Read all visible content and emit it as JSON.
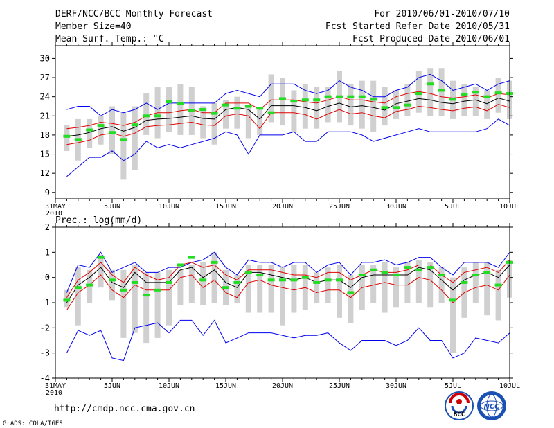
{
  "header": {
    "title": "DERF/NCC/BCC Monthly Forecast",
    "member_size": "Member Size=40",
    "variable": "Mean Surf. Temp.: °C",
    "forecast_for": "For 2010/06/01-2010/07/10",
    "started_refer": "Fcst Started Refer Date 2010/05/31",
    "produced": "Fcst Produced Date 2010/06/01"
  },
  "footer": {
    "url": "http://cmdp.ncc.cma.gov.cn",
    "grads": "GrADS: COLA/IGES",
    "logo_left_text": "BCC",
    "logo_right_text": "NCC"
  },
  "colors": {
    "spread": "#d0d0d0",
    "member_max_min": "#0000ee",
    "band": "#e00000",
    "mean": "#000000",
    "marker": "#22dd22"
  },
  "chart_data": [
    {
      "id": "temperature",
      "type": "line",
      "title": "Mean Surf. Temp.: °C",
      "ylim": [
        8,
        32
      ],
      "yticks": [
        9,
        12,
        15,
        18,
        21,
        24,
        27,
        30
      ],
      "x_tick_labels": [
        "31MAY",
        "5JUN",
        "10JUN",
        "15JUN",
        "20JUN",
        "25JUN",
        "30JUN",
        "5JUL",
        "10JUL"
      ],
      "x_tick_days": [
        0,
        5,
        10,
        15,
        20,
        25,
        30,
        35,
        40
      ],
      "x_year_label": "2010",
      "days": [
        1,
        2,
        3,
        4,
        5,
        6,
        7,
        8,
        9,
        10,
        11,
        12,
        13,
        14,
        15,
        16,
        17,
        18,
        19,
        20,
        21,
        22,
        23,
        24,
        25,
        26,
        27,
        28,
        29,
        30,
        31,
        32,
        33,
        34,
        35,
        36,
        37,
        38,
        39,
        40
      ],
      "max": [
        22.0,
        22.5,
        22.5,
        21.0,
        22.0,
        21.5,
        22.0,
        23.0,
        22.0,
        23.0,
        23.0,
        23.0,
        23.0,
        23.0,
        24.5,
        25.0,
        24.5,
        24.0,
        26.0,
        26.0,
        26.0,
        25.0,
        24.5,
        25.0,
        26.5,
        25.5,
        25.0,
        24.0,
        24.0,
        25.0,
        25.5,
        27.0,
        27.5,
        26.5,
        25.0,
        25.5,
        26.0,
        25.0,
        26.0,
        26.5
      ],
      "upper": [
        19.0,
        19.2,
        19.5,
        20.0,
        19.8,
        19.5,
        20.0,
        21.0,
        21.5,
        21.5,
        21.8,
        22.0,
        21.5,
        21.5,
        23.0,
        23.0,
        23.0,
        22.0,
        23.5,
        23.5,
        23.5,
        23.2,
        23.0,
        23.5,
        24.0,
        23.5,
        23.5,
        23.2,
        23.0,
        24.0,
        24.5,
        24.8,
        24.5,
        24.0,
        23.8,
        24.0,
        24.3,
        23.8,
        24.5,
        24.3
      ],
      "mean": [
        17.8,
        18.0,
        18.4,
        19.0,
        19.3,
        18.6,
        19.2,
        20.3,
        20.5,
        20.6,
        20.8,
        21.0,
        20.6,
        20.5,
        22.0,
        22.3,
        22.0,
        20.5,
        22.6,
        22.6,
        22.6,
        22.3,
        21.8,
        22.5,
        23.0,
        22.4,
        22.6,
        22.3,
        21.9,
        22.9,
        23.3,
        23.7,
        23.5,
        23.1,
        22.9,
        23.3,
        23.5,
        22.9,
        23.8,
        23.3
      ],
      "lower": [
        16.5,
        16.8,
        17.2,
        18.0,
        18.3,
        17.8,
        18.3,
        19.3,
        19.5,
        19.6,
        19.8,
        20.0,
        19.6,
        19.5,
        21.0,
        21.3,
        21.0,
        19.0,
        21.5,
        21.5,
        21.5,
        21.2,
        20.5,
        21.3,
        22.0,
        21.3,
        21.5,
        21.0,
        20.7,
        21.7,
        22.0,
        22.5,
        22.3,
        22.0,
        21.8,
        22.2,
        22.4,
        21.8,
        22.8,
        22.3
      ],
      "min": [
        11.5,
        13.0,
        14.5,
        14.5,
        15.5,
        14.0,
        15.0,
        17.0,
        16.0,
        16.5,
        16.0,
        16.5,
        17.0,
        17.5,
        18.5,
        18.0,
        15.0,
        18.0,
        18.0,
        18.0,
        18.5,
        17.0,
        17.0,
        18.5,
        18.5,
        18.5,
        18.0,
        17.0,
        17.5,
        18.0,
        18.5,
        19.0,
        18.5,
        18.5,
        18.5,
        18.5,
        18.5,
        19.0,
        20.5,
        19.5
      ],
      "spread_top": [
        19.5,
        20.5,
        20.5,
        21.0,
        22.5,
        21.5,
        22.5,
        24.5,
        25.5,
        25.5,
        26.0,
        25.5,
        22.5,
        23.0,
        23.5,
        24.0,
        22.5,
        22.0,
        27.5,
        27.0,
        25.0,
        26.0,
        25.5,
        25.5,
        28.0,
        26.0,
        26.5,
        26.5,
        25.5,
        25.0,
        26.0,
        28.0,
        28.5,
        28.5,
        26.5,
        26.0,
        25.5,
        25.0,
        27.0,
        26.5
      ],
      "spread_bottom": [
        15.5,
        14.0,
        16.0,
        16.5,
        15.0,
        11.0,
        12.5,
        18.0,
        17.5,
        18.5,
        18.0,
        18.0,
        17.5,
        16.5,
        19.0,
        19.0,
        17.5,
        18.0,
        20.0,
        19.5,
        18.5,
        19.0,
        19.0,
        20.0,
        20.0,
        19.5,
        19.0,
        18.5,
        19.5,
        20.5,
        21.0,
        21.5,
        21.0,
        21.0,
        20.5,
        21.0,
        21.0,
        20.5,
        21.5,
        20.5
      ],
      "markers": [
        17.8,
        17.3,
        18.8,
        19.5,
        18.4,
        17.3,
        19.6,
        21.0,
        21.0,
        23.2,
        22.9,
        21.8,
        22.0,
        21.4,
        22.7,
        22.2,
        22.5,
        22.2,
        21.5,
        23.7,
        23.3,
        23.5,
        23.5,
        24.0,
        24.0,
        24.0,
        24.0,
        23.6,
        22.3,
        22.3,
        22.7,
        24.5,
        26.0,
        25.0,
        23.6,
        24.4,
        24.7,
        24.0,
        24.6,
        24.5
      ]
    },
    {
      "id": "precipitation",
      "type": "line",
      "title": "Prec.: log(mm/d)",
      "ylim": [
        -4,
        2
      ],
      "yticks": [
        -4,
        -3,
        -2,
        -1,
        0,
        1,
        2
      ],
      "x_tick_labels": [
        "31MAY",
        "5JUN",
        "10JUN",
        "15JUN",
        "20JUN",
        "25JUN",
        "30JUN",
        "5JUL",
        "10JUL"
      ],
      "x_tick_days": [
        0,
        5,
        10,
        15,
        20,
        25,
        30,
        35,
        40
      ],
      "x_year_label": "2010",
      "days": [
        1,
        2,
        3,
        4,
        5,
        6,
        7,
        8,
        9,
        10,
        11,
        12,
        13,
        14,
        15,
        16,
        17,
        18,
        19,
        20,
        21,
        22,
        23,
        24,
        25,
        26,
        27,
        28,
        29,
        30,
        31,
        32,
        33,
        34,
        35,
        36,
        37,
        38,
        39,
        40
      ],
      "max": [
        -0.6,
        0.5,
        0.4,
        1.0,
        0.2,
        0.4,
        0.6,
        0.2,
        0.2,
        0.4,
        0.4,
        0.6,
        0.7,
        1.0,
        0.4,
        0.1,
        0.7,
        0.6,
        0.6,
        0.4,
        0.6,
        0.6,
        0.2,
        0.5,
        0.6,
        0.1,
        0.6,
        0.6,
        0.7,
        0.5,
        0.6,
        0.8,
        0.8,
        0.4,
        0.1,
        0.6,
        0.6,
        0.6,
        0.4,
        1.0
      ],
      "upper": [
        -0.8,
        -0.1,
        0.2,
        0.6,
        0.1,
        -0.2,
        0.4,
        0.1,
        -0.1,
        0.0,
        0.5,
        0.6,
        0.4,
        0.5,
        0.1,
        -0.1,
        0.3,
        0.3,
        0.3,
        0.2,
        0.1,
        0.1,
        0.0,
        0.2,
        0.2,
        -0.1,
        0.1,
        0.3,
        0.2,
        0.2,
        0.3,
        0.5,
        0.5,
        0.1,
        -0.2,
        0.2,
        0.3,
        0.4,
        0.2,
        0.7
      ],
      "mean": [
        -1.0,
        -0.3,
        0.0,
        0.4,
        -0.2,
        -0.4,
        0.2,
        -0.2,
        -0.2,
        -0.2,
        0.3,
        0.4,
        0.0,
        0.3,
        -0.2,
        -0.4,
        0.2,
        0.2,
        0.1,
        0.0,
        -0.1,
        0.0,
        -0.2,
        -0.1,
        -0.1,
        -0.4,
        0.0,
        0.1,
        0.1,
        0.1,
        0.1,
        0.4,
        0.3,
        -0.1,
        -0.5,
        -0.1,
        0.1,
        0.2,
        0.0,
        0.5
      ],
      "lower": [
        -1.3,
        -0.6,
        -0.3,
        0.1,
        -0.5,
        -0.8,
        -0.3,
        -0.5,
        -0.5,
        -0.5,
        0.0,
        0.1,
        -0.4,
        -0.1,
        -0.6,
        -0.8,
        -0.2,
        -0.1,
        -0.3,
        -0.4,
        -0.5,
        -0.4,
        -0.6,
        -0.5,
        -0.5,
        -0.8,
        -0.4,
        -0.3,
        -0.2,
        -0.3,
        -0.3,
        0.0,
        -0.1,
        -0.5,
        -1.0,
        -0.6,
        -0.4,
        -0.3,
        -0.5,
        0.1
      ],
      "min": [
        -3.0,
        -2.1,
        -2.3,
        -2.1,
        -3.2,
        -3.3,
        -2.0,
        -1.9,
        -1.8,
        -2.2,
        -1.7,
        -1.7,
        -2.3,
        -1.7,
        -2.6,
        -2.4,
        -2.2,
        -2.2,
        -2.2,
        -2.3,
        -2.4,
        -2.3,
        -2.3,
        -2.2,
        -2.6,
        -2.9,
        -2.5,
        -2.5,
        -2.5,
        -2.7,
        -2.5,
        -2.0,
        -2.5,
        -2.5,
        -3.2,
        -3.0,
        -2.4,
        -2.5,
        -2.6,
        -2.2
      ],
      "spread_top": [
        -0.5,
        0.4,
        0.3,
        0.9,
        0.3,
        0.3,
        0.5,
        0.2,
        0.2,
        0.3,
        0.3,
        0.5,
        0.6,
        1.0,
        0.3,
        0.1,
        0.5,
        0.5,
        0.5,
        0.4,
        0.5,
        0.5,
        0.2,
        0.4,
        0.5,
        0.1,
        0.5,
        0.5,
        0.6,
        0.4,
        0.6,
        0.7,
        0.6,
        0.4,
        0.0,
        0.4,
        0.6,
        0.6,
        0.3,
        0.7
      ],
      "spread_bottom": [
        -1.2,
        -1.9,
        -1.0,
        -0.4,
        -0.9,
        -2.4,
        -2.2,
        -2.6,
        -2.4,
        -1.9,
        -1.1,
        -1.0,
        -1.1,
        -1.0,
        -1.1,
        -1.0,
        -1.4,
        -1.4,
        -1.4,
        -1.9,
        -1.4,
        -1.3,
        -1.0,
        -1.0,
        -1.6,
        -1.8,
        -1.3,
        -1.0,
        -1.4,
        -1.2,
        -1.0,
        -1.0,
        -1.2,
        -1.0,
        -3.0,
        -1.6,
        -1.0,
        -1.5,
        -1.7,
        -0.8
      ],
      "markers": [
        -0.9,
        -0.4,
        -0.3,
        0.8,
        -0.1,
        -0.5,
        -0.2,
        -0.7,
        -0.5,
        -0.2,
        0.5,
        0.8,
        -0.1,
        0.6,
        -0.4,
        -0.2,
        0.2,
        0.1,
        -0.1,
        -0.1,
        -0.1,
        0.0,
        -0.2,
        -0.1,
        -0.1,
        -0.6,
        0.1,
        0.3,
        0.2,
        0.1,
        0.4,
        0.3,
        0.4,
        0.1,
        -0.9,
        -0.2,
        0.1,
        0.2,
        -0.3,
        0.6
      ]
    }
  ]
}
